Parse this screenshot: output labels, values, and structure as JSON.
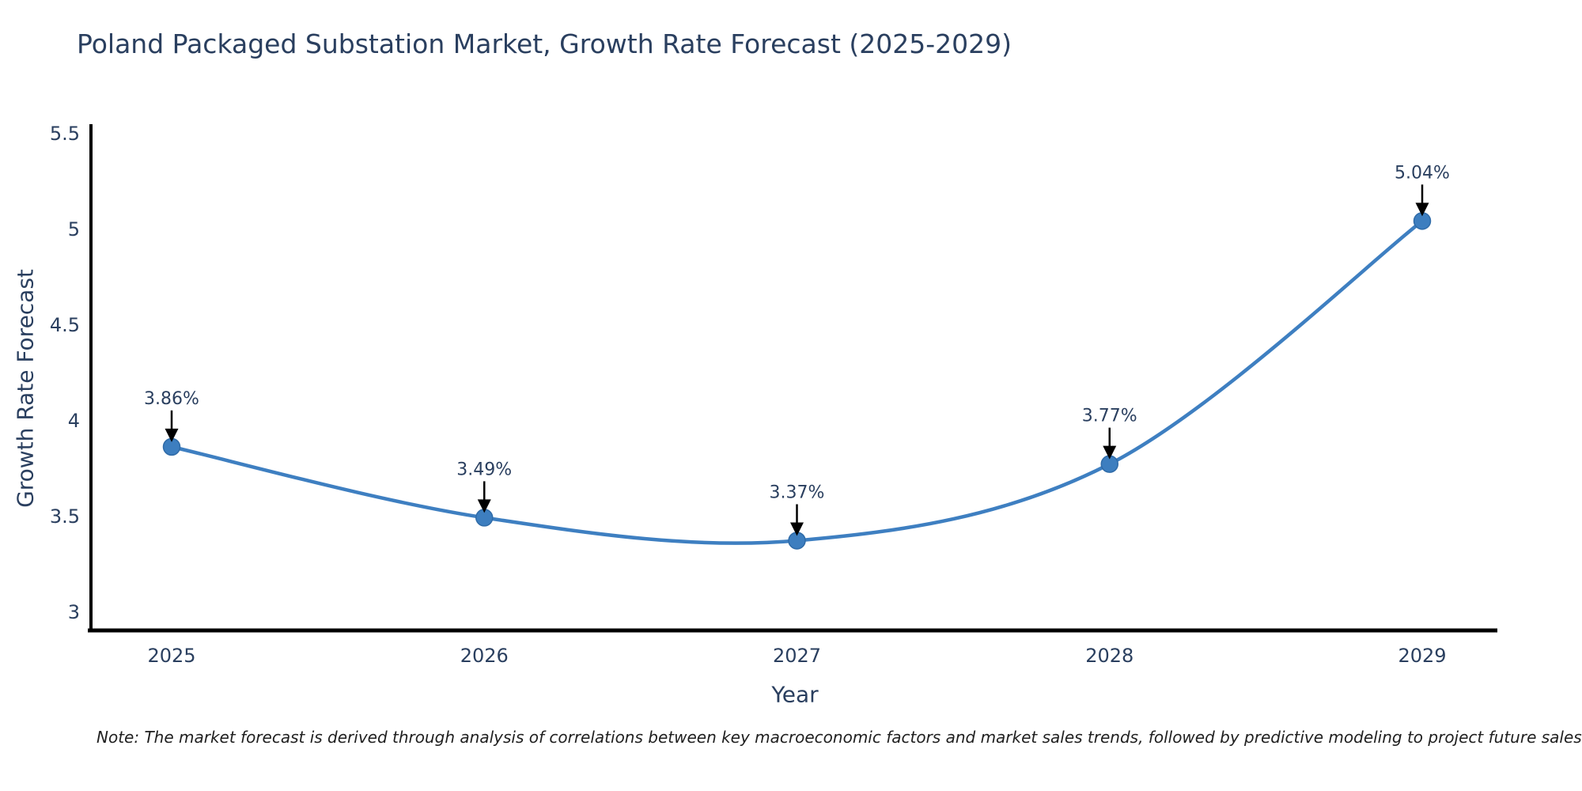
{
  "page": {
    "background": "#ffffff"
  },
  "chart_data": {
    "type": "line",
    "title": "Poland Packaged Substation Market, Growth Rate Forecast (2025-2029)",
    "xlabel": "Year",
    "ylabel": "Growth Rate Forecast",
    "categories": [
      "2025",
      "2026",
      "2027",
      "2028",
      "2029"
    ],
    "values": [
      3.86,
      3.49,
      3.37,
      3.77,
      5.04
    ],
    "point_labels": [
      "3.86%",
      "3.49%",
      "3.37%",
      "3.77%",
      "5.04%"
    ],
    "yticks": [
      3,
      3.5,
      4,
      4.5,
      5,
      5.5
    ],
    "ytick_labels": [
      "3",
      "3.5",
      "4",
      "4.5",
      "5",
      "5.5"
    ],
    "ylim": [
      2.9,
      5.55
    ],
    "grid": false,
    "legend_position": "none",
    "line_shape": "spline",
    "annotation_arrows": true,
    "colors": {
      "line": "#3e7fc1",
      "marker": "#3d7ebf",
      "marker_edge": "#2f6ba8",
      "axis": "#000000",
      "text": "#2a3f5f",
      "annotation_arrow": "#000000"
    }
  },
  "note": {
    "text": "Note: The market forecast is derived through analysis of correlations between key macroeconomic factors and market sales trends, followed by predictive modeling to project future sales"
  }
}
